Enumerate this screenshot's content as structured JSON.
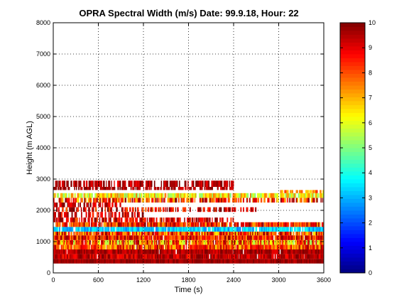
{
  "chart_data": {
    "type": "heatmap",
    "title": "OPRA Spectral Width (m/s)  Date: 99.9.18, Hour: 22",
    "xlabel": "Time (s)",
    "ylabel": "Height (m AGL)",
    "xlim": [
      0,
      3600
    ],
    "ylim": [
      0,
      8000
    ],
    "x_ticks": [
      "0",
      "600",
      "1200",
      "1800",
      "2400",
      "3000",
      "3600"
    ],
    "y_ticks": [
      "0",
      "1000",
      "2000",
      "3000",
      "4000",
      "5000",
      "6000",
      "7000",
      "8000"
    ],
    "grid": true,
    "colorbar": {
      "colormap": "jet",
      "range": [
        0,
        10
      ],
      "ticks": [
        "0",
        "1",
        "2",
        "3",
        "4",
        "5",
        "6",
        "7",
        "8",
        "9",
        "10"
      ]
    },
    "bands": [
      {
        "h0": 300,
        "h1": 450,
        "start": 0,
        "end": 3600,
        "level": 9.7,
        "var": 0.4,
        "fill": 0.99
      },
      {
        "h0": 450,
        "h1": 600,
        "start": 0,
        "end": 3600,
        "level": 9.3,
        "var": 0.9,
        "fill": 0.98
      },
      {
        "h0": 600,
        "h1": 750,
        "start": 0,
        "end": 3600,
        "level": 9.5,
        "var": 0.6,
        "fill": 0.98
      },
      {
        "h0": 750,
        "h1": 900,
        "start": 0,
        "end": 3600,
        "level": 8.2,
        "var": 1.6,
        "fill": 0.97
      },
      {
        "h0": 900,
        "h1": 1050,
        "start": 0,
        "end": 3600,
        "level": 7.5,
        "var": 2.2,
        "fill": 0.96
      },
      {
        "h0": 1050,
        "h1": 1200,
        "start": 0,
        "end": 3600,
        "level": 8.6,
        "var": 1.4,
        "fill": 0.96
      },
      {
        "h0": 1200,
        "h1": 1320,
        "start": 0,
        "end": 3600,
        "level": 8.2,
        "var": 1.8,
        "fill": 0.95
      },
      {
        "h0": 1320,
        "h1": 1470,
        "start": 0,
        "end": 3600,
        "level": 3.3,
        "var": 0.8,
        "fill": 0.93
      },
      {
        "h0": 1470,
        "h1": 1620,
        "start": 0,
        "end": 3600,
        "level": 8.5,
        "var": 1.5,
        "fill": 0.9
      },
      {
        "h0": 1620,
        "h1": 1770,
        "start": 0,
        "end": 2400,
        "level": 9.0,
        "var": 1.2,
        "fill": 0.6
      },
      {
        "h0": 1770,
        "h1": 1950,
        "start": 0,
        "end": 1200,
        "level": 9.3,
        "var": 1.0,
        "fill": 0.65
      },
      {
        "h0": 1950,
        "h1": 2100,
        "start": 0,
        "end": 2700,
        "level": 9.0,
        "var": 1.3,
        "fill": 0.55
      },
      {
        "h0": 2100,
        "h1": 2250,
        "start": 0,
        "end": 900,
        "level": 9.4,
        "var": 0.8,
        "fill": 0.6
      },
      {
        "h0": 2250,
        "h1": 2400,
        "start": 0,
        "end": 3600,
        "level": 8.3,
        "var": 1.8,
        "fill": 0.7
      },
      {
        "h0": 2400,
        "h1": 2550,
        "start": 0,
        "end": 3600,
        "level": 6.4,
        "var": 1.4,
        "fill": 0.9
      },
      {
        "h0": 2550,
        "h1": 2650,
        "start": 3000,
        "end": 3600,
        "level": 7.4,
        "var": 1.0,
        "fill": 0.7
      },
      {
        "h0": 2650,
        "h1": 2750,
        "start": 0,
        "end": 2400,
        "level": 9.6,
        "var": 0.6,
        "fill": 0.55
      },
      {
        "h0": 2750,
        "h1": 2950,
        "start": 0,
        "end": 2400,
        "level": 9.5,
        "var": 0.8,
        "fill": 0.7
      }
    ]
  }
}
